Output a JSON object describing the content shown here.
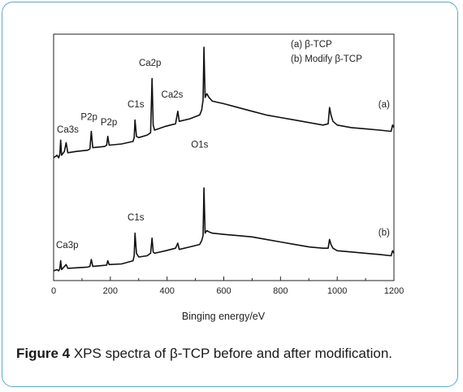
{
  "chart_data": {
    "type": "line",
    "xlabel": "Binging energy/eV",
    "ylabel": "",
    "xlim": [
      0,
      1200
    ],
    "x_ticks": [
      "0",
      "200",
      "400",
      "600",
      "800",
      "1000",
      "1200"
    ],
    "legend": [
      "(a) β-TCP",
      "(b) Modify β-TCP"
    ],
    "series": [
      {
        "name": "(a)",
        "points": [
          [
            0,
            0.12
          ],
          [
            12,
            0.14
          ],
          [
            18,
            0.12
          ],
          [
            22,
            0.15
          ],
          [
            25,
            0.26
          ],
          [
            28,
            0.14
          ],
          [
            38,
            0.17
          ],
          [
            44,
            0.24
          ],
          [
            50,
            0.16
          ],
          [
            80,
            0.17
          ],
          [
            120,
            0.18
          ],
          [
            128,
            0.19
          ],
          [
            133,
            0.33
          ],
          [
            138,
            0.2
          ],
          [
            180,
            0.21
          ],
          [
            187,
            0.22
          ],
          [
            191,
            0.29
          ],
          [
            196,
            0.22
          ],
          [
            240,
            0.23
          ],
          [
            280,
            0.25
          ],
          [
            284,
            0.28
          ],
          [
            287,
            0.42
          ],
          [
            292,
            0.29
          ],
          [
            300,
            0.28
          ],
          [
            330,
            0.3
          ],
          [
            342,
            0.32
          ],
          [
            347,
            0.75
          ],
          [
            351,
            0.38
          ],
          [
            356,
            0.34
          ],
          [
            395,
            0.37
          ],
          [
            430,
            0.39
          ],
          [
            438,
            0.49
          ],
          [
            443,
            0.41
          ],
          [
            480,
            0.43
          ],
          [
            515,
            0.46
          ],
          [
            522,
            0.5
          ],
          [
            527,
            0.58
          ],
          [
            530,
            1.0
          ],
          [
            534,
            0.6
          ],
          [
            540,
            0.63
          ],
          [
            548,
            0.6
          ],
          [
            560,
            0.57
          ],
          [
            600,
            0.55
          ],
          [
            650,
            0.52
          ],
          [
            700,
            0.49
          ],
          [
            750,
            0.46
          ],
          [
            800,
            0.44
          ],
          [
            850,
            0.42
          ],
          [
            900,
            0.4
          ],
          [
            950,
            0.38
          ],
          [
            968,
            0.39
          ],
          [
            973,
            0.52
          ],
          [
            978,
            0.46
          ],
          [
            985,
            0.41
          ],
          [
            1000,
            0.38
          ],
          [
            1050,
            0.36
          ],
          [
            1100,
            0.35
          ],
          [
            1150,
            0.34
          ],
          [
            1190,
            0.33
          ],
          [
            1195,
            0.38
          ],
          [
            1200,
            0.36
          ]
        ]
      },
      {
        "name": "(b)",
        "points": [
          [
            0,
            -0.78
          ],
          [
            12,
            -0.77
          ],
          [
            18,
            -0.78
          ],
          [
            22,
            -0.76
          ],
          [
            25,
            -0.7
          ],
          [
            28,
            -0.77
          ],
          [
            44,
            -0.73
          ],
          [
            50,
            -0.76
          ],
          [
            120,
            -0.75
          ],
          [
            128,
            -0.745
          ],
          [
            133,
            -0.69
          ],
          [
            138,
            -0.745
          ],
          [
            187,
            -0.735
          ],
          [
            191,
            -0.7
          ],
          [
            196,
            -0.73
          ],
          [
            240,
            -0.725
          ],
          [
            280,
            -0.7
          ],
          [
            284,
            -0.66
          ],
          [
            287,
            -0.48
          ],
          [
            292,
            -0.64
          ],
          [
            300,
            -0.67
          ],
          [
            330,
            -0.66
          ],
          [
            342,
            -0.64
          ],
          [
            347,
            -0.52
          ],
          [
            351,
            -0.63
          ],
          [
            356,
            -0.64
          ],
          [
            395,
            -0.62
          ],
          [
            430,
            -0.6
          ],
          [
            438,
            -0.56
          ],
          [
            443,
            -0.61
          ],
          [
            480,
            -0.59
          ],
          [
            515,
            -0.57
          ],
          [
            522,
            -0.54
          ],
          [
            527,
            -0.5
          ],
          [
            530,
            -0.12
          ],
          [
            534,
            -0.48
          ],
          [
            540,
            -0.46
          ],
          [
            548,
            -0.47
          ],
          [
            560,
            -0.48
          ],
          [
            600,
            -0.49
          ],
          [
            650,
            -0.5
          ],
          [
            700,
            -0.51
          ],
          [
            750,
            -0.53
          ],
          [
            800,
            -0.55
          ],
          [
            850,
            -0.57
          ],
          [
            900,
            -0.59
          ],
          [
            950,
            -0.6
          ],
          [
            968,
            -0.6
          ],
          [
            973,
            -0.53
          ],
          [
            978,
            -0.57
          ],
          [
            985,
            -0.6
          ],
          [
            1000,
            -0.62
          ],
          [
            1050,
            -0.63
          ],
          [
            1100,
            -0.64
          ],
          [
            1150,
            -0.65
          ],
          [
            1190,
            -0.66
          ],
          [
            1195,
            -0.62
          ],
          [
            1200,
            -0.64
          ]
        ]
      }
    ],
    "annotations": [
      {
        "text": "Ca3s",
        "x": 50,
        "y": 0.32
      },
      {
        "text": "P2p",
        "x": 125,
        "y": 0.42
      },
      {
        "text": "P2p",
        "x": 195,
        "y": 0.38
      },
      {
        "text": "C1s",
        "x": 290,
        "y": 0.52
      },
      {
        "text": "Ca2p",
        "x": 340,
        "y": 0.85
      },
      {
        "text": "Ca2s",
        "x": 418,
        "y": 0.6
      },
      {
        "text": "(a)",
        "x": 1165,
        "y": 0.52
      },
      {
        "text": "O1s",
        "x": 515,
        "y": 0.2
      },
      {
        "text": "C1s",
        "x": 290,
        "y": -0.38
      },
      {
        "text": "Ca3p",
        "x": 48,
        "y": -0.6
      },
      {
        "text": "(b)",
        "x": 1165,
        "y": -0.5
      }
    ]
  },
  "caption": {
    "label": "Figure 4",
    "text": " XPS spectra of β-TCP before and after modification."
  }
}
